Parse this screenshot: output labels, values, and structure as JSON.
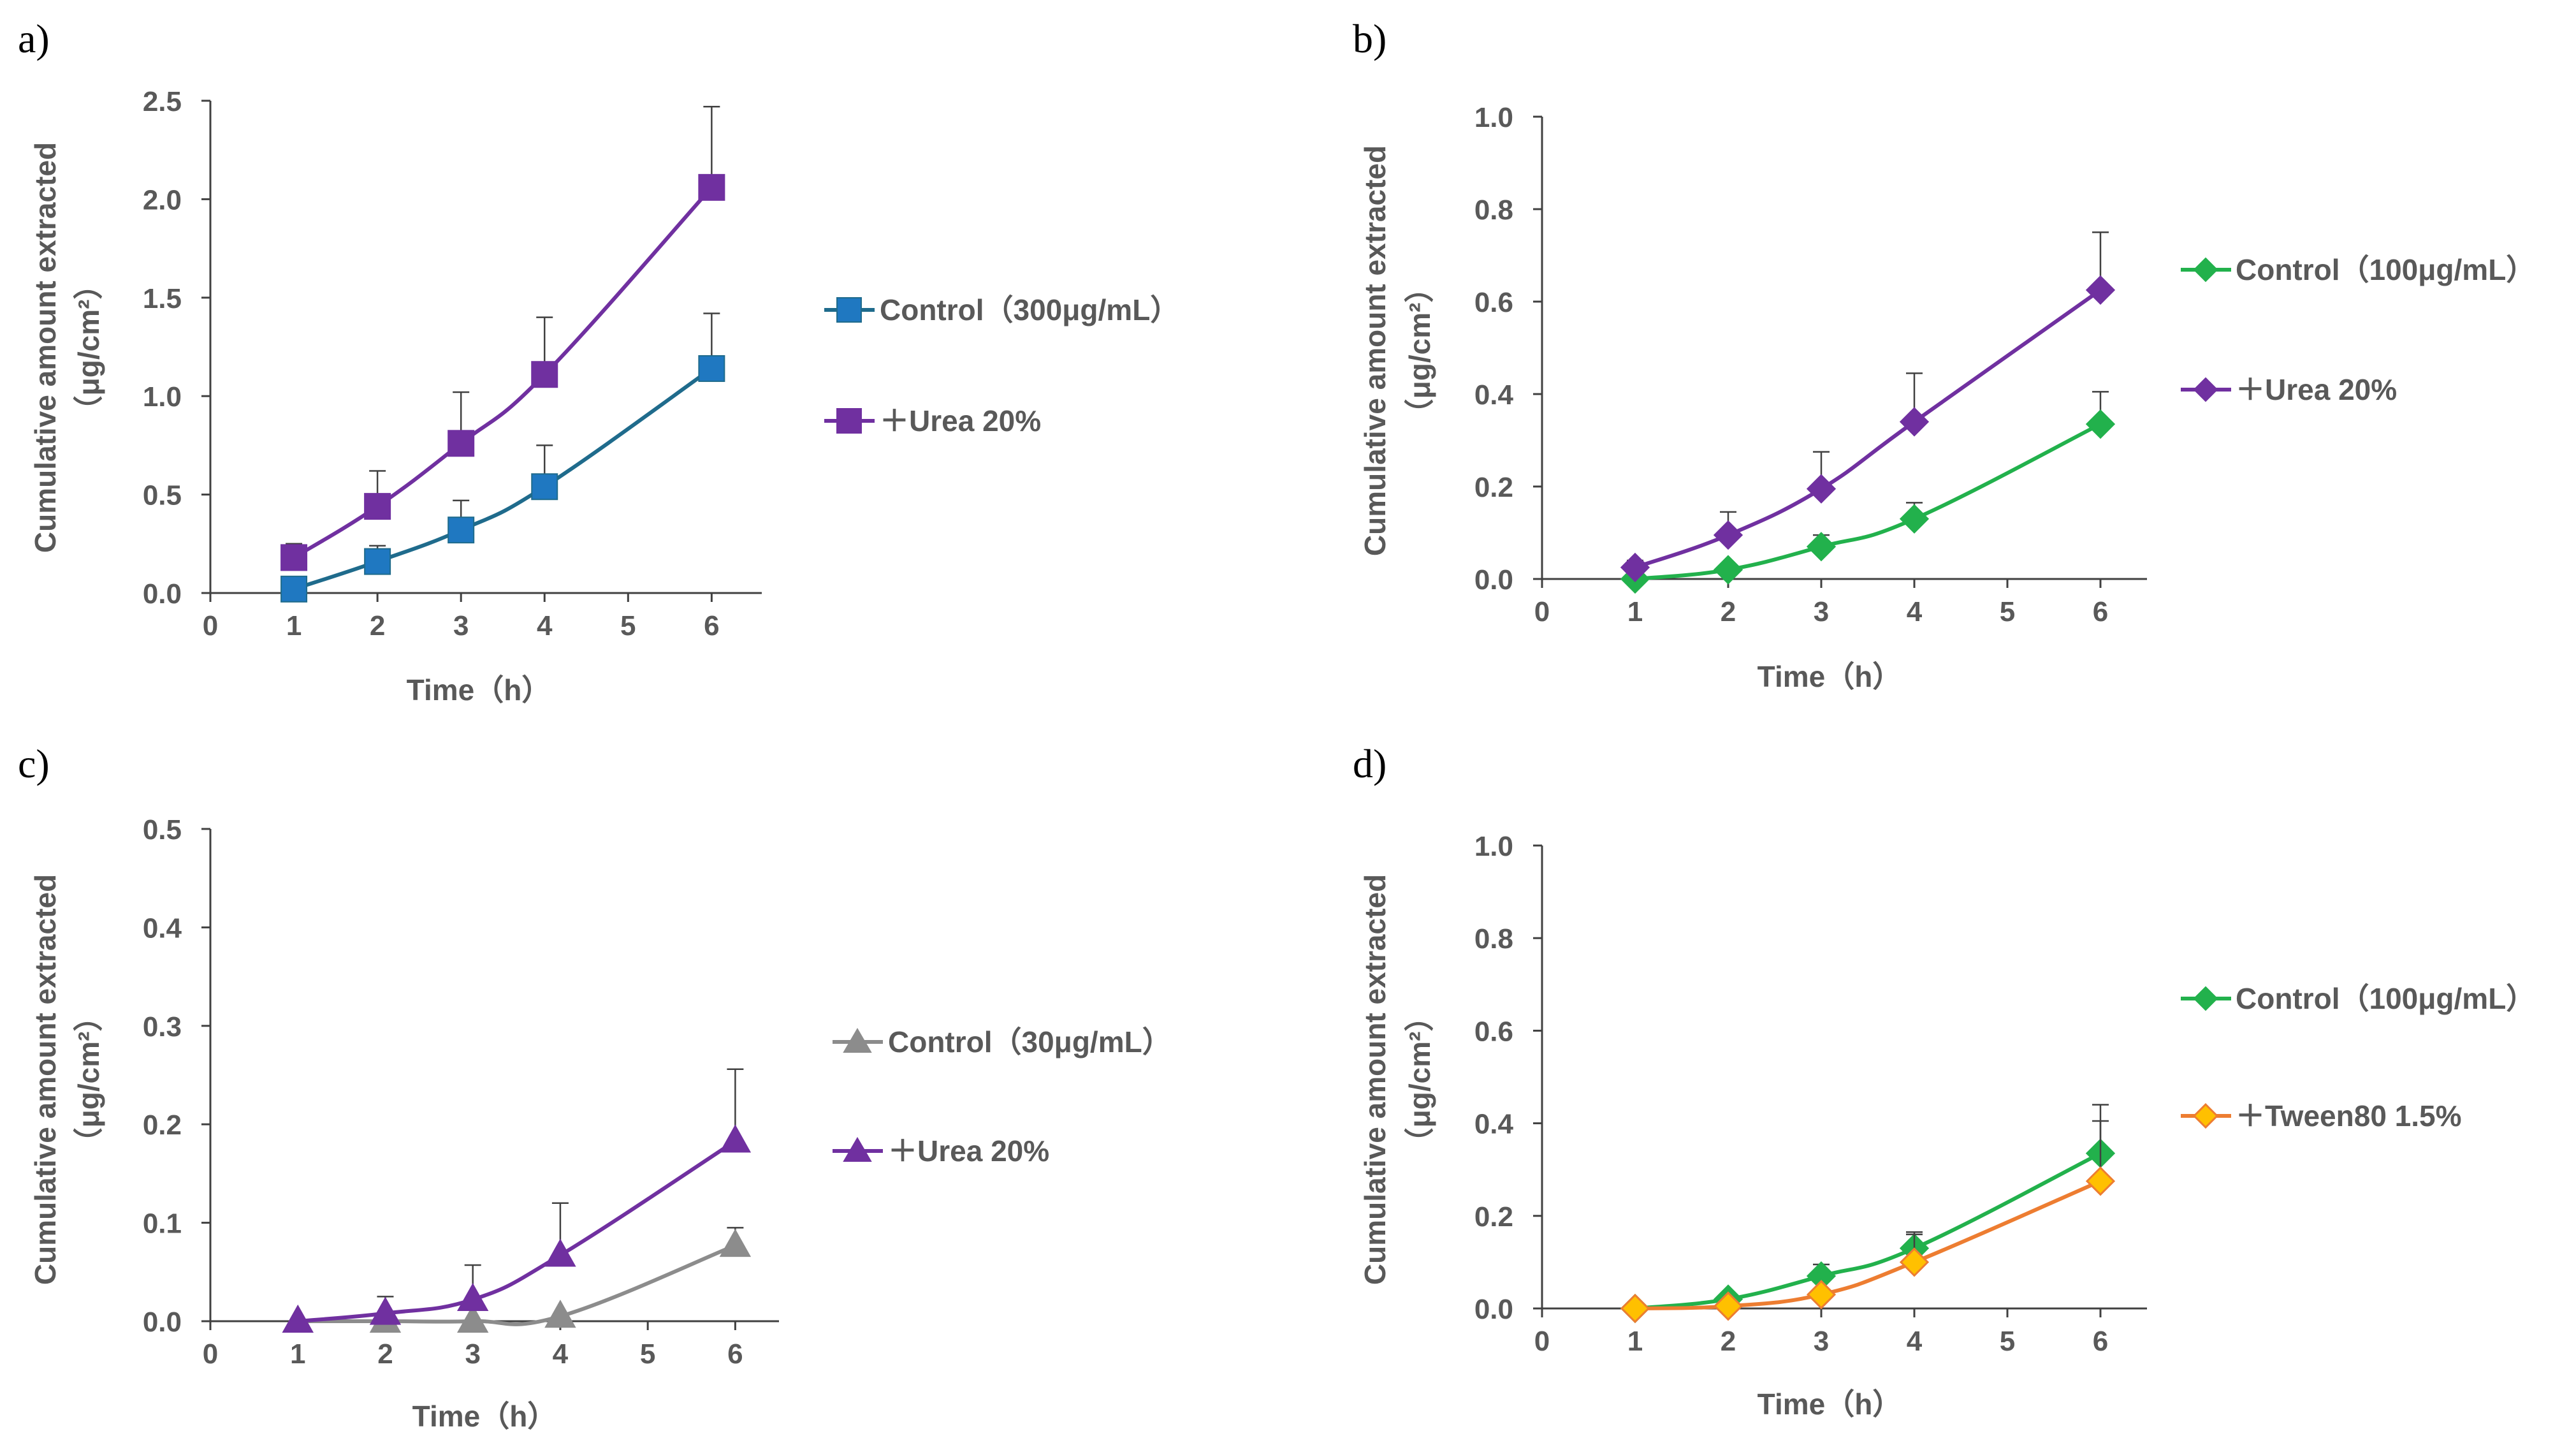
{
  "figure": {
    "panels": [
      {
        "label": "a)"
      },
      {
        "label": "b)"
      },
      {
        "label": "c)"
      },
      {
        "label": "d)"
      }
    ]
  },
  "chart_data": [
    {
      "panel": "a)",
      "type": "line",
      "xlabel": "Time（h）",
      "ylabel_line1": "Cumulative amount extracted",
      "ylabel_line2": "（μg/cm²）",
      "xlim": [
        0,
        6.6
      ],
      "ylim": [
        0,
        2.5
      ],
      "x_ticks": [
        0,
        1,
        2,
        3,
        4,
        5,
        6
      ],
      "y_ticks": [
        0.0,
        0.5,
        1.0,
        1.5,
        2.0,
        2.5
      ],
      "y_tick_labels": [
        "0.0",
        "0.5",
        "1.0",
        "1.5",
        "2.0",
        "2.5"
      ],
      "series": [
        {
          "name": "Control（300μg/mL）",
          "color": "#1f6b8c",
          "fill": "#1f78c1",
          "marker": "square",
          "x": [
            1,
            2,
            3,
            4,
            6
          ],
          "y": [
            0.02,
            0.16,
            0.32,
            0.54,
            1.14
          ],
          "err": [
            0.0,
            0.08,
            0.15,
            0.21,
            0.28
          ]
        },
        {
          "name": "＋Urea 20%",
          "color": "#7030a0",
          "fill": "#7030a0",
          "marker": "square",
          "x": [
            1,
            2,
            3,
            4,
            6
          ],
          "y": [
            0.18,
            0.44,
            0.76,
            1.11,
            2.06
          ],
          "err": [
            0.07,
            0.18,
            0.26,
            0.29,
            0.41
          ]
        }
      ]
    },
    {
      "panel": "b)",
      "type": "line",
      "xlabel": "Time（h）",
      "ylabel_line1": "Cumulative amount extracted",
      "ylabel_line2": "（μg/cm²）",
      "xlim": [
        0,
        6.5
      ],
      "ylim": [
        0,
        1.0
      ],
      "x_ticks": [
        0,
        1,
        2,
        3,
        4,
        5,
        6
      ],
      "y_ticks": [
        0.0,
        0.2,
        0.4,
        0.6,
        0.8,
        1.0
      ],
      "y_tick_labels": [
        "0.0",
        "0.2",
        "0.4",
        "0.6",
        "0.8",
        "1.0"
      ],
      "series": [
        {
          "name": "Control（100μg/mL）",
          "color": "#22b14c",
          "fill": "#22b14c",
          "marker": "diamond",
          "x": [
            1,
            2,
            3,
            4,
            6
          ],
          "y": [
            0.0,
            0.02,
            0.07,
            0.13,
            0.335
          ],
          "err": [
            0.0,
            0.0,
            0.025,
            0.035,
            0.07
          ]
        },
        {
          "name": "＋Urea 20%",
          "color": "#7030a0",
          "fill": "#7030a0",
          "marker": "diamond",
          "x": [
            1,
            2,
            3,
            4,
            6
          ],
          "y": [
            0.025,
            0.095,
            0.195,
            0.34,
            0.625
          ],
          "err": [
            0.015,
            0.05,
            0.08,
            0.105,
            0.125
          ]
        }
      ]
    },
    {
      "panel": "c)",
      "type": "line",
      "xlabel": "Time（h）",
      "ylabel_line1": "Cumulative amount extracted",
      "ylabel_line2": "（μg/cm²）",
      "xlim": [
        0,
        6.5
      ],
      "ylim": [
        0,
        0.5
      ],
      "x_ticks": [
        0,
        1,
        2,
        3,
        4,
        5,
        6
      ],
      "y_ticks": [
        0.0,
        0.1,
        0.2,
        0.3,
        0.4,
        0.5
      ],
      "y_tick_labels": [
        "0.0",
        "0.1",
        "0.2",
        "0.3",
        "0.4",
        "0.5"
      ],
      "series": [
        {
          "name": "Control（30μg/mL）",
          "color": "#8c8c8c",
          "fill": "#8c8c8c",
          "marker": "triangle",
          "x": [
            1,
            2,
            3,
            4,
            6
          ],
          "y": [
            0.0,
            0.0,
            0.0,
            0.005,
            0.077
          ],
          "err": [
            0.0,
            0.0,
            0.0,
            0.0,
            0.018
          ]
        },
        {
          "name": "＋Urea 20%",
          "color": "#7030a0",
          "fill": "#7030a0",
          "marker": "triangle",
          "x": [
            1,
            2,
            3,
            4,
            6
          ],
          "y": [
            0.0,
            0.008,
            0.022,
            0.067,
            0.183
          ],
          "err": [
            0.0,
            0.017,
            0.035,
            0.053,
            0.073
          ]
        }
      ]
    },
    {
      "panel": "d)",
      "type": "line",
      "xlabel": "Time（h）",
      "ylabel_line1": "Cumulative amount extracted",
      "ylabel_line2": "（μg/cm²）",
      "xlim": [
        0,
        6.5
      ],
      "ylim": [
        0,
        1.0
      ],
      "x_ticks": [
        0,
        1,
        2,
        3,
        4,
        5,
        6
      ],
      "y_ticks": [
        0.0,
        0.2,
        0.4,
        0.6,
        0.8,
        1.0
      ],
      "y_tick_labels": [
        "0.0",
        "0.2",
        "0.4",
        "0.6",
        "0.8",
        "1.0"
      ],
      "series": [
        {
          "name": "Control（100μg/mL）",
          "color": "#22b14c",
          "fill": "#22b14c",
          "marker": "diamond",
          "x": [
            1,
            2,
            3,
            4,
            6
          ],
          "y": [
            0.0,
            0.02,
            0.07,
            0.13,
            0.335
          ],
          "err": [
            0.0,
            0.0,
            0.025,
            0.035,
            0.07
          ]
        },
        {
          "name": "＋Tween80 1.5%",
          "color": "#ed7d31",
          "fill": "#ffc000",
          "marker": "diamond",
          "x": [
            1,
            2,
            3,
            4,
            6
          ],
          "y": [
            0.0,
            0.005,
            0.03,
            0.1,
            0.275
          ],
          "err": [
            0.0,
            0.0,
            0.0,
            0.06,
            0.165
          ]
        }
      ]
    }
  ]
}
